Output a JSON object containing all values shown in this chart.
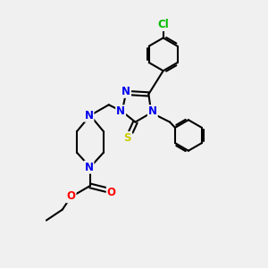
{
  "bg_color": "#f0f0f0",
  "atom_colors": {
    "N": "#0000ee",
    "S": "#cccc00",
    "O": "#ff0000",
    "Cl": "#00bb00",
    "C": "#000000"
  },
  "bond_color": "#000000",
  "bond_width": 1.5,
  "font_size_atom": 8.5
}
